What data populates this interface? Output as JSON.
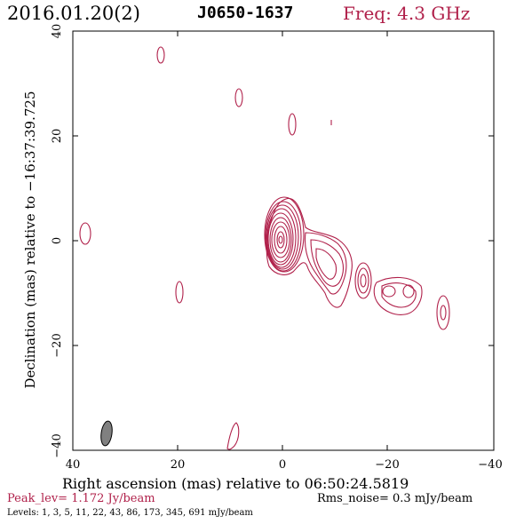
{
  "header": {
    "date": "2016.01.20(2)",
    "source": "J0650-1637",
    "freq": "Freq: 4.3 GHz"
  },
  "axes": {
    "ylabel": "Declination (mas) relative to −16:37:39.725",
    "xlabel": "Right ascension (mas) relative to 06:50:24.5819",
    "x_ticks": [
      "40",
      "20",
      "0",
      "−20",
      "−40"
    ],
    "y_ticks": [
      "40",
      "20",
      "0",
      "−20",
      "−40"
    ]
  },
  "footer": {
    "peak": "Peak_lev=  1.172 Jy/beam",
    "rms": "Rms_noise=  0.3 mJy/beam",
    "levels": "Levels:   1,   3,   5,  11,  22,  43,  86, 173, 345, 691 mJy/beam"
  },
  "colors": {
    "contour": "#b0204a",
    "beam_fill": "#808080"
  }
}
